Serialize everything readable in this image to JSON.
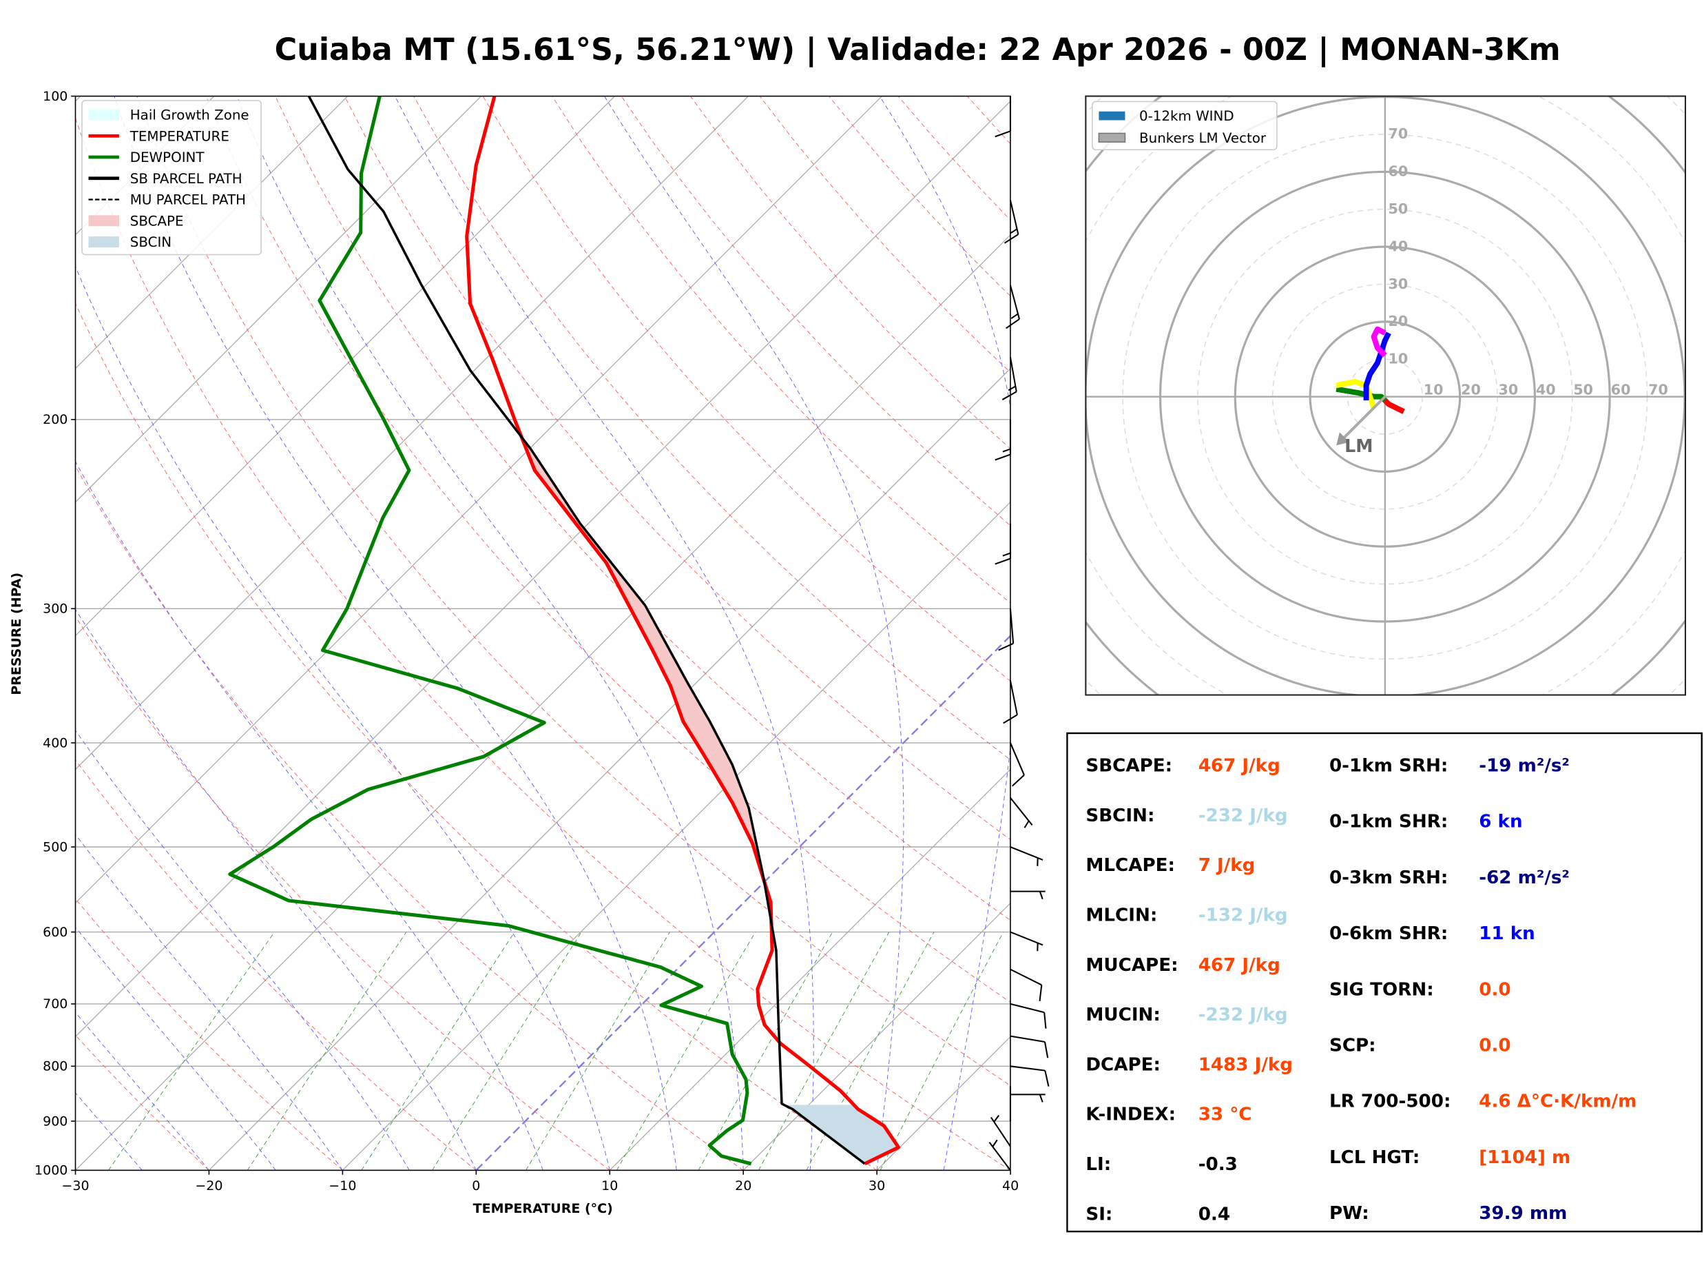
{
  "title": "Cuiaba MT (15.61°S, 56.21°W) | Validade: 22 Apr 2026 - 00Z | MONAN-3Km",
  "chart_data": [
    {
      "type": "line",
      "subtype": "skew-t log-p",
      "xlabel": "TEMPERATURE (°C)",
      "ylabel": "PRESSURE (HPA)",
      "xlim": [
        -30,
        40
      ],
      "ylim": [
        1000,
        100
      ],
      "y_scale": "log",
      "grid": true,
      "xticks": [
        "−30",
        "−20",
        "−10",
        "0",
        "10",
        "20",
        "30",
        "40"
      ],
      "xtick_values": [
        -30,
        -20,
        -10,
        0,
        10,
        20,
        30,
        40
      ],
      "yticks": [
        "100",
        "200",
        "300",
        "400",
        "500",
        "600",
        "700",
        "800",
        "900",
        "1000"
      ],
      "ytick_values": [
        100,
        200,
        300,
        400,
        500,
        600,
        700,
        800,
        900,
        1000
      ],
      "legend_position": "top-left",
      "legend": [
        "Hail Growth Zone",
        "TEMPERATURE",
        "DEWPOINT",
        "SB PARCEL PATH",
        "MU PARCEL PATH",
        "SBCAPE",
        "SBCIN"
      ],
      "colors": {
        "temperature": "#ff0000",
        "dewpoint": "#008000",
        "parcel": "#000000",
        "hail": "#e0ffff",
        "sbcape": "#f7c8c8",
        "sbcin": "#c9dde8",
        "zero_isotherm": "#8080e0"
      },
      "temperature": {
        "p": [
          986,
          952,
          909,
          877,
          843,
          798,
          762,
          732,
          702,
          678,
          624,
          563,
          496,
          455,
          410,
          382,
          354,
          328,
          272,
          223,
          200,
          176,
          156,
          135,
          116,
          100
        ],
        "T": [
          28.6,
          29.9,
          27.2,
          24,
          21.3,
          17,
          13.3,
          10.7,
          8.8,
          7.5,
          5.7,
          2,
          -3.8,
          -8.3,
          -14.1,
          -18.1,
          -21.7,
          -25.7,
          -35.7,
          -48,
          -53.3,
          -59.4,
          -65.3,
          -70.6,
          -75.2,
          -79
        ]
      },
      "dewpoint": {
        "p": [
          986,
          970,
          948,
          919,
          898,
          847,
          823,
          780,
          730,
          702,
          674,
          647,
          592,
          561,
          530,
          500,
          471,
          442,
          412,
          383,
          356,
          328,
          300,
          247,
          223,
          200,
          155,
          134,
          118,
          100
        ],
        "T": [
          20.1,
          17.3,
          15.6,
          15.8,
          16.2,
          14.5,
          13.4,
          10.5,
          7.8,
          1.5,
          3.1,
          -1.4,
          -15.9,
          -34.2,
          -40.6,
          -39.4,
          -38.6,
          -36.6,
          -30.4,
          -28.4,
          -37.4,
          -50.4,
          -51.7,
          -55.8,
          -57.4,
          -63.1,
          -76.8,
          -78.8,
          -83.2,
          -87.6
        ]
      },
      "sb_parcel": {
        "p": [
          986,
          877,
          867,
          727,
          624,
          530,
          460,
          419,
          382,
          352,
          298,
          250,
          213,
          180,
          150,
          128,
          117,
          100
        ],
        "T": [
          28.6,
          19.1,
          17.9,
          11.5,
          6,
          -0.7,
          -6.7,
          -11.2,
          -16.1,
          -20.6,
          -29.6,
          -40.6,
          -49.9,
          -60.3,
          -70.3,
          -78.7,
          -84.5,
          -92.9
        ]
      },
      "hail_growth_zone_p": [
        385,
        550
      ],
      "sbcape_p": [
        560,
        212
      ],
      "sbcin_p": [
        985,
        868
      ],
      "wind_barbs_kt": [
        {
          "p": 1000,
          "u": 3,
          "v": -4
        },
        {
          "p": 950,
          "u": 2,
          "v": -3
        },
        {
          "p": 900,
          "u": 0,
          "v": -2
        },
        {
          "p": 850,
          "u": -3,
          "v": 0
        },
        {
          "p": 800,
          "u": -8,
          "v": 1
        },
        {
          "p": 750,
          "u": -12,
          "v": 2
        },
        {
          "p": 700,
          "u": -12,
          "v": 3
        },
        {
          "p": 650,
          "u": -8,
          "v": 4
        },
        {
          "p": 600,
          "u": -5,
          "v": 2
        },
        {
          "p": 550,
          "u": -4,
          "v": 0
        },
        {
          "p": 500,
          "u": -5,
          "v": 2
        },
        {
          "p": 450,
          "u": -4,
          "v": 5
        },
        {
          "p": 400,
          "u": -3,
          "v": 7
        },
        {
          "p": 350,
          "u": -2,
          "v": 10
        },
        {
          "p": 300,
          "u": -1,
          "v": 12
        },
        {
          "p": 250,
          "u": 0,
          "v": 14
        },
        {
          "p": 200,
          "u": 0,
          "v": 17
        },
        {
          "p": 175,
          "u": -3,
          "v": 17
        },
        {
          "p": 150,
          "u": -4,
          "v": 15
        },
        {
          "p": 125,
          "u": -3,
          "v": 13
        },
        {
          "p": 100,
          "u": 0,
          "v": 11
        }
      ]
    },
    {
      "type": "line",
      "subtype": "hodograph",
      "xlim": [
        -80,
        80
      ],
      "ylim": [
        -80,
        80
      ],
      "ring_labels": [
        "10",
        "20",
        "30",
        "40",
        "50",
        "60",
        "70"
      ],
      "ring_values": [
        10,
        20,
        30,
        40,
        50,
        60,
        70
      ],
      "legend_position": "top-left",
      "legend": [
        "0-12km WIND",
        "Bunkers LM Vector"
      ],
      "legend_colors": [
        "#1f77b4",
        "#aaaaaa"
      ],
      "segments": [
        {
          "color": "#ff0000",
          "uv": [
            [
              5,
              -4
            ],
            [
              3,
              -3
            ],
            [
              1,
              -2
            ],
            [
              0,
              -1
            ]
          ]
        },
        {
          "color": "#008000",
          "uv": [
            [
              0,
              -1
            ],
            [
              -1,
              0
            ],
            [
              -3,
              0
            ],
            [
              -7,
              1
            ],
            [
              -13,
              2
            ]
          ]
        },
        {
          "color": "#ffff00",
          "uv": [
            [
              -13,
              3
            ],
            [
              -8,
              4
            ],
            [
              -5,
              3
            ],
            [
              -4,
              0
            ],
            [
              -3,
              -3
            ]
          ]
        },
        {
          "color": "#0000ff",
          "uv": [
            [
              -5,
              -1
            ],
            [
              -5,
              3
            ],
            [
              -4,
              6
            ],
            [
              -2,
              9
            ],
            [
              -1,
              12
            ],
            [
              0,
              15
            ],
            [
              1,
              17
            ]
          ]
        },
        {
          "color": "#ff00ff",
          "uv": [
            [
              0,
              17
            ],
            [
              -2,
              18
            ],
            [
              -3,
              16
            ],
            [
              -2,
              13
            ],
            [
              0,
              11
            ]
          ]
        }
      ],
      "lm_vector": {
        "label": "LM",
        "u": -13,
        "v": -13
      }
    }
  ],
  "stats": {
    "left": [
      {
        "label": "SBCAPE:",
        "value": "467 J/kg",
        "color": "#ff4500"
      },
      {
        "label": "SBCIN:",
        "value": "-232 J/kg",
        "color": "#add8e6"
      },
      {
        "label": "MLCAPE:",
        "value": "7 J/kg",
        "color": "#ff4500"
      },
      {
        "label": "MLCIN:",
        "value": "-132 J/kg",
        "color": "#add8e6"
      },
      {
        "label": "MUCAPE:",
        "value": "467 J/kg",
        "color": "#ff4500"
      },
      {
        "label": "MUCIN:",
        "value": "-232 J/kg",
        "color": "#add8e6"
      },
      {
        "label": "DCAPE:",
        "value": "1483 J/kg",
        "color": "#ff4500"
      },
      {
        "label": "K-INDEX:",
        "value": "33 °C",
        "color": "#ff4500"
      },
      {
        "label": "LI:",
        "value": "-0.3",
        "color": "#000000"
      },
      {
        "label": "SI:",
        "value": "0.4",
        "color": "#000000"
      }
    ],
    "right": [
      {
        "label": "0-1km SRH:",
        "value": "-19 m²/s²",
        "color": "#000080"
      },
      {
        "label": "0-1km SHR:",
        "value": "6 kn",
        "color": "#0000ff"
      },
      {
        "label": "0-3km SRH:",
        "value": "-62 m²/s²",
        "color": "#000080"
      },
      {
        "label": "0-6km SHR:",
        "value": "11 kn",
        "color": "#0000ff"
      },
      {
        "label": "SIG TORN:",
        "value": "0.0",
        "color": "#ff4500"
      },
      {
        "label": "SCP:",
        "value": "0.0",
        "color": "#ff4500"
      },
      {
        "label": "LR 700-500:",
        "value": "4.6 Δ°C·K/km/m",
        "color": "#ff4500"
      },
      {
        "label": "LCL HGT:",
        "value": "[1104] m",
        "color": "#ff4500"
      },
      {
        "label": "PW:",
        "value": "39.9 mm",
        "color": "#000080"
      }
    ]
  }
}
